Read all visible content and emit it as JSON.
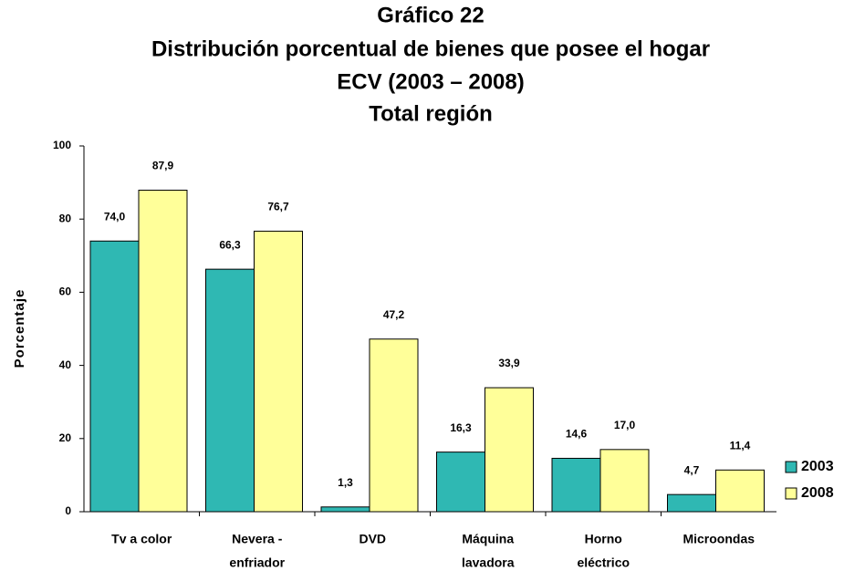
{
  "chart_data": {
    "type": "bar",
    "title": "Gráfico 22",
    "subtitle": [
      "Distribución porcentual de bienes que posee el hogar",
      "ECV (2003 – 2008)",
      "Total región"
    ],
    "y_label": "Porcentaje",
    "categories": [
      [
        "Tv a color"
      ],
      [
        "Nevera -",
        "enfriador"
      ],
      [
        "DVD"
      ],
      [
        "Máquina",
        "lavadora"
      ],
      [
        "Horno",
        "eléctrico"
      ],
      [
        "Microondas"
      ]
    ],
    "series": [
      {
        "name": "2003",
        "color": "#2fb8b3",
        "values": [
          74.0,
          66.3,
          1.3,
          16.3,
          14.6,
          4.7
        ],
        "value_labels": [
          "74,0",
          "66,3",
          "1,3",
          "16,3",
          "14,6",
          "4,7"
        ]
      },
      {
        "name": "2008",
        "color": "#ffff99",
        "values": [
          87.9,
          76.7,
          47.2,
          33.9,
          17.0,
          11.4
        ],
        "value_labels": [
          "87,9",
          "76,7",
          "47,2",
          "33,9",
          "17,0",
          "11,4"
        ]
      }
    ],
    "ylim": [
      0,
      100
    ],
    "yticks": [
      0,
      20,
      40,
      60,
      80,
      100
    ],
    "grid": false,
    "legend": "right"
  }
}
